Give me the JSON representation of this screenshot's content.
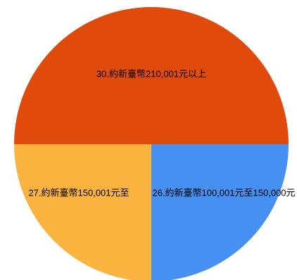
{
  "chart_data": {
    "type": "pie",
    "slices": [
      {
        "label": "30.約新臺幣210,001元以上",
        "value": 50,
        "color": "#E04A0A"
      },
      {
        "label": "26.約新臺幣100,001元至150,000元",
        "value": 25,
        "color": "#4590F0"
      },
      {
        "label": "27.約新臺幣150,001元至",
        "value": 25,
        "color": "#FBB33F"
      }
    ],
    "start_angle_deg": 180,
    "direction": "clockwise",
    "legend": "none"
  }
}
